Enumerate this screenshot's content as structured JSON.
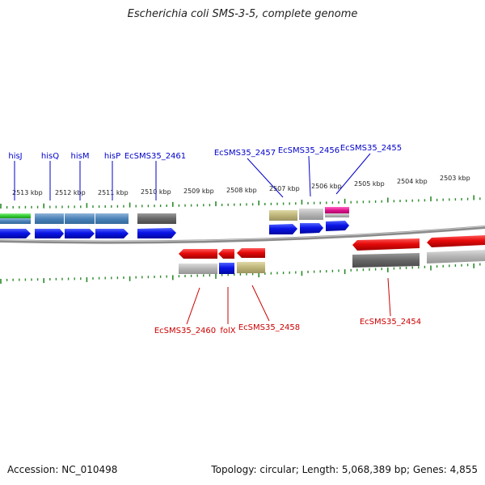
{
  "title": "Escherichia coli SMS-3-5, complete genome",
  "accession": "Accession: NC_010498",
  "summary": "Topology: circular; Length: 5,068,389 bp; Genes: 4,855",
  "colors": {
    "forward_label": "#0000cc",
    "reverse_label": "#cc0000",
    "tick": "#2a8a2a",
    "backbone": "#777777",
    "forward_gene": "#0a14e6",
    "reverse_gene": "#e60a0a"
  },
  "scale_labels": [
    "2513 kbp",
    "2512 kbp",
    "2511 kbp",
    "2510 kbp",
    "2509 kbp",
    "2508 kbp",
    "2507 kbp",
    "2506 kbp",
    "2505 kbp",
    "2504 kbp",
    "2503 kbp"
  ],
  "forward_gene_labels": [
    "hisJ",
    "hisQ",
    "hisM",
    "hisP",
    "EcSMS35_2461",
    "EcSMS35_2457",
    "EcSMS35_2456",
    "EcSMS35_2455"
  ],
  "reverse_gene_labels": [
    "EcSMS35_2460",
    "folX",
    "EcSMS35_2458",
    "EcSMS35_2454"
  ]
}
